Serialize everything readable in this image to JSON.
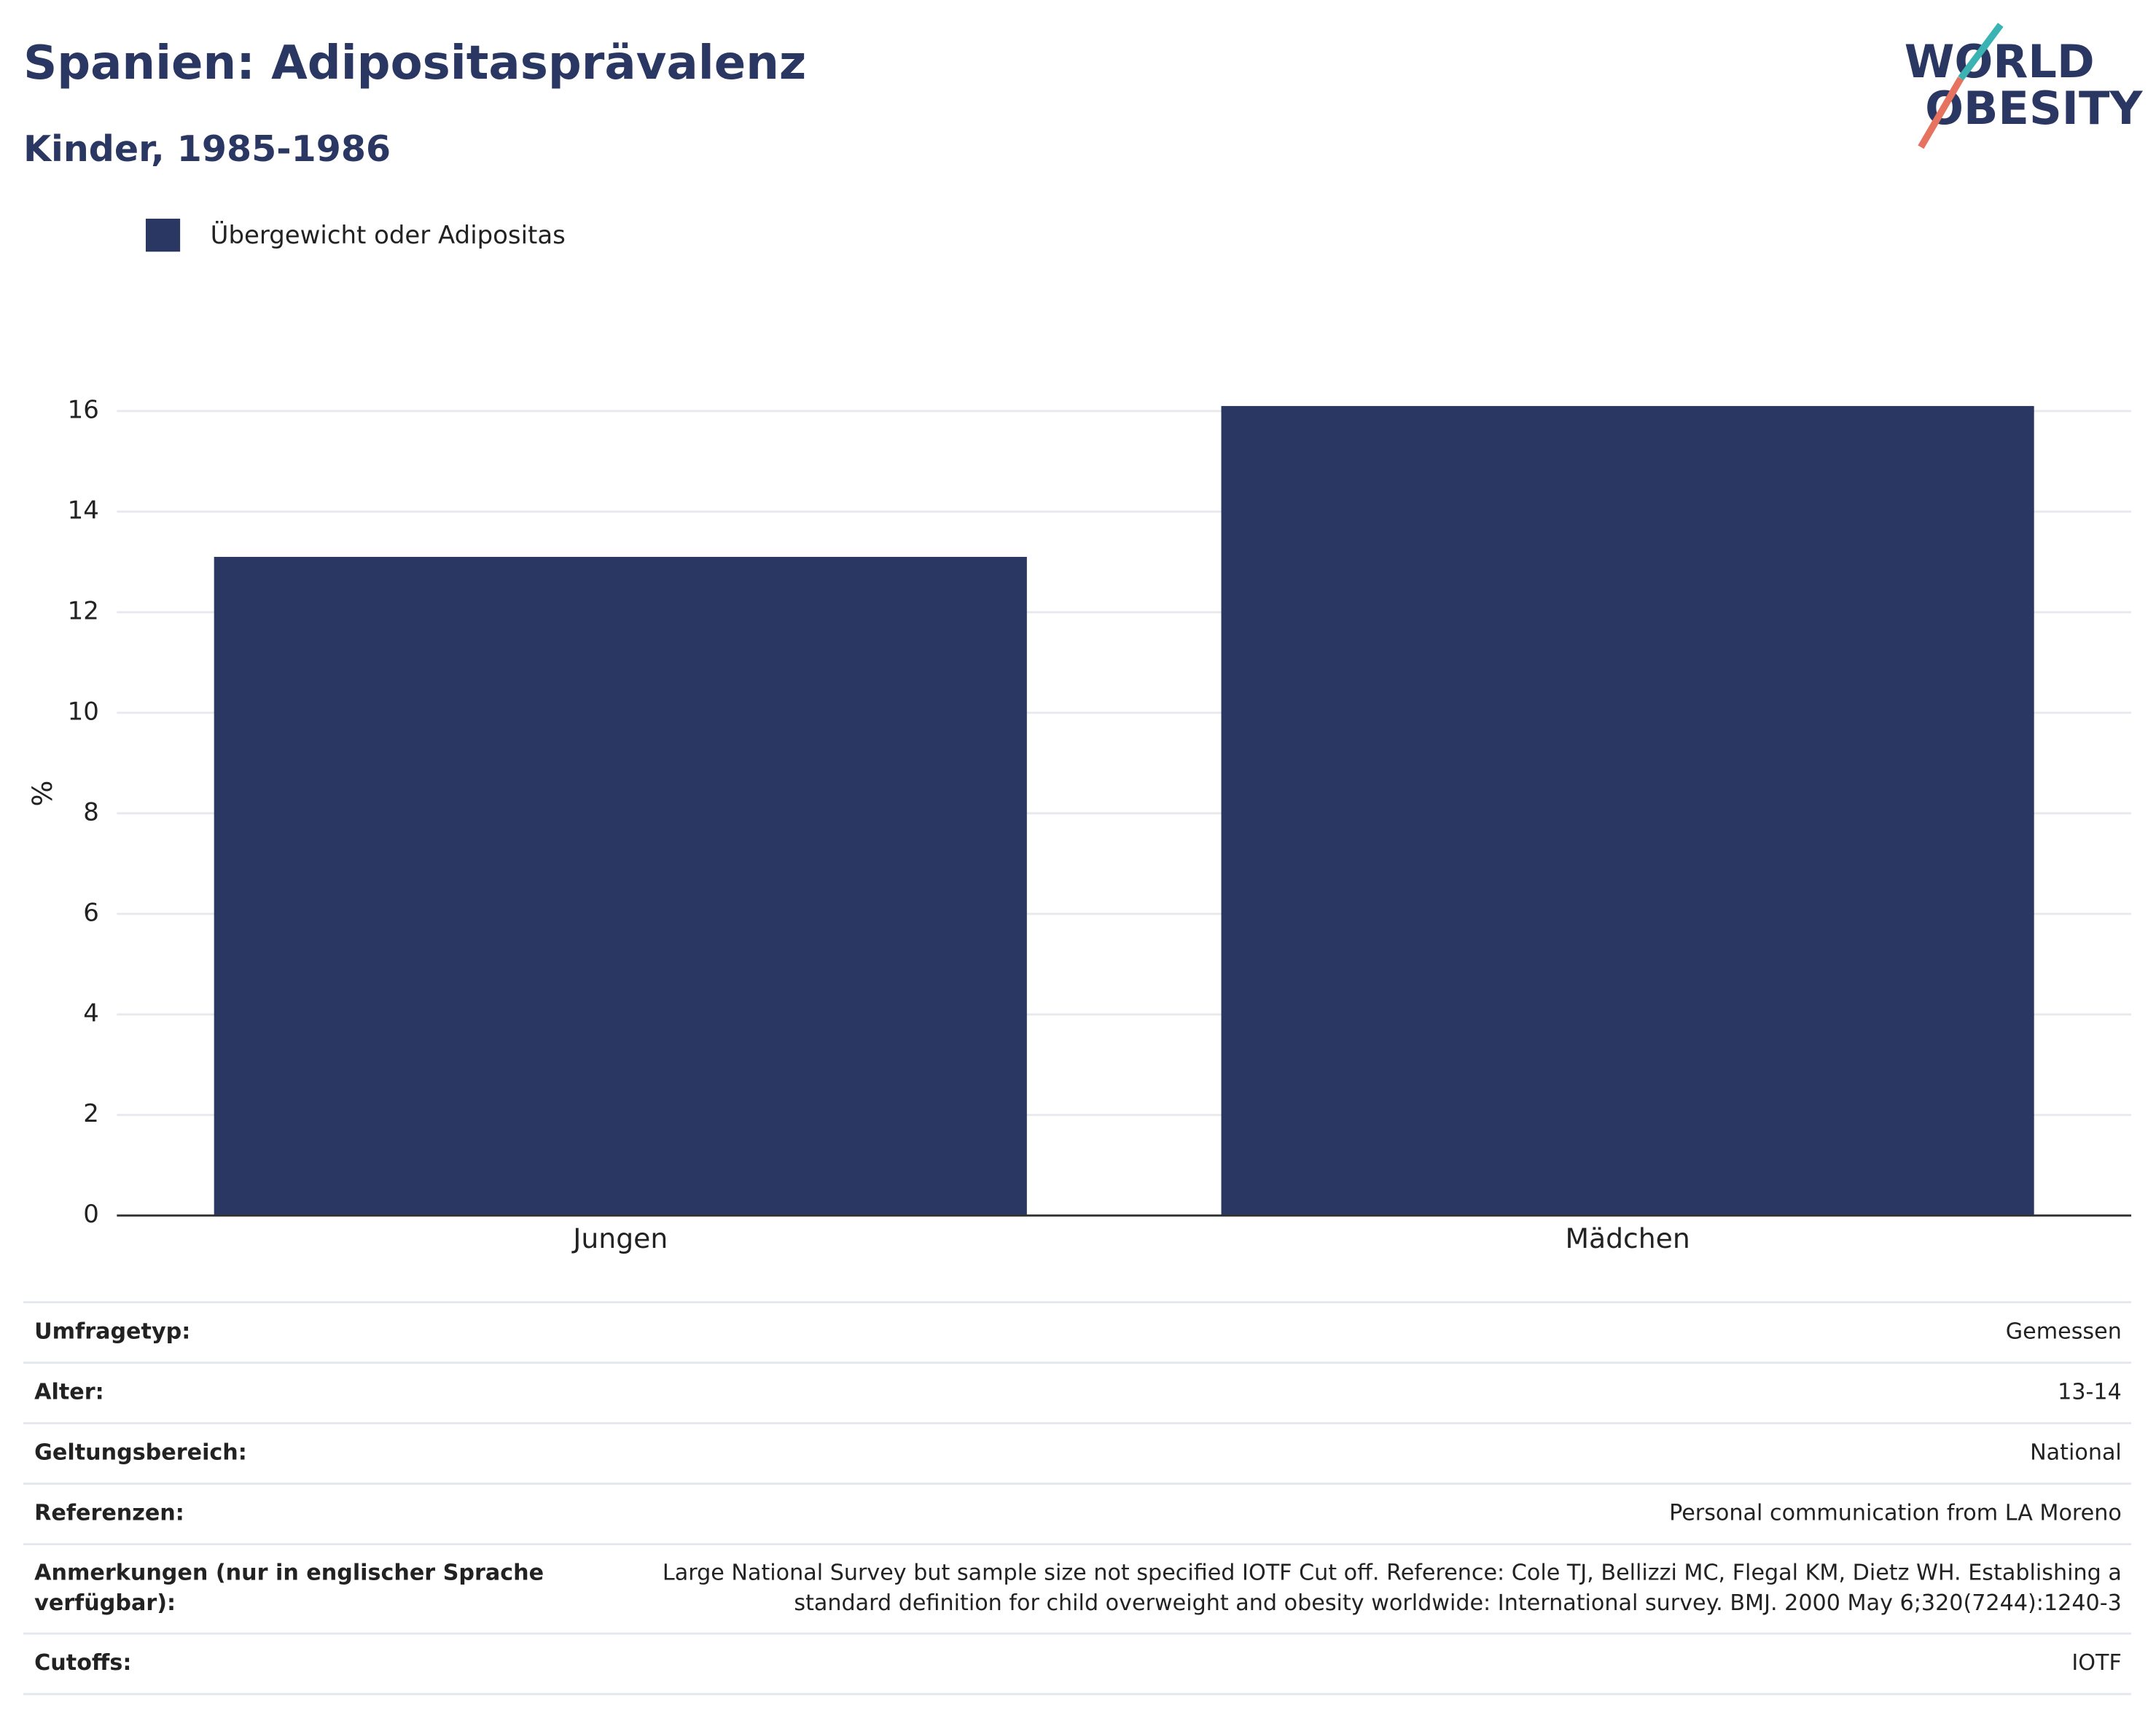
{
  "chart_data": {
    "type": "bar",
    "title": "Spanien: Adipositasprävalenz",
    "subtitle": "Kinder, 1985-1986",
    "y_label": "%",
    "categories": [
      "Jungen",
      "Mädchen"
    ],
    "series": [
      {
        "name": "Übergewicht oder Adipositas",
        "color": "#2b3763",
        "values": [
          13.1,
          16.1
        ]
      }
    ],
    "ylim": [
      0,
      16.9
    ],
    "yticks": [
      0,
      2,
      4,
      6,
      8,
      10,
      12,
      14,
      16
    ],
    "grid": true
  },
  "logo": {
    "line1": "WORLD",
    "line2": "OBESITY"
  },
  "table": {
    "rows": [
      {
        "label": [
          "Umfragetyp:"
        ],
        "value": [
          "Gemessen"
        ]
      },
      {
        "label": [
          "Alter:"
        ],
        "value": [
          "13-14"
        ]
      },
      {
        "label": [
          "Geltungsbereich:"
        ],
        "value": [
          "National"
        ]
      },
      {
        "label": [
          "Referenzen:"
        ],
        "value": [
          "Personal communication from LA Moreno"
        ]
      },
      {
        "label": [
          "Anmerkungen (nur in englischer Sprache",
          "verfügbar):"
        ],
        "value": [
          "Large National Survey but sample size not specified IOTF Cut off. Reference: Cole TJ, Bellizzi MC, Flegal KM, Dietz WH. Establishing a",
          "standard definition for child overweight and obesity worldwide: International survey. BMJ. 2000 May 6;320(7244):1240-3"
        ]
      },
      {
        "label": [
          "Cutoffs:"
        ],
        "value": [
          "IOTF"
        ]
      }
    ]
  }
}
